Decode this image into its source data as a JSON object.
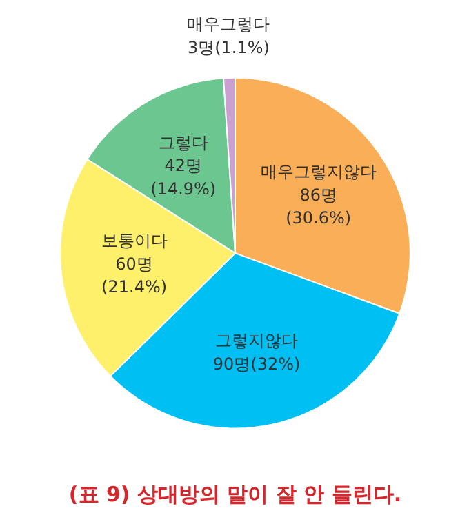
{
  "chart_data": {
    "type": "pie",
    "title": "(표 9) 상대방의 말이 잘 안 들린다.",
    "categories": [
      "매우그렇지않다",
      "그렇지않다",
      "보통이다",
      "그렇다",
      "매우그렇다"
    ],
    "values": [
      86,
      90,
      60,
      42,
      3
    ],
    "colors": [
      "#f9ae57",
      "#00bff3",
      "#fff06b",
      "#6cc690",
      "#c9a0d0"
    ],
    "value_labels": [
      "86명\n(30.6%)",
      "90명(32%)",
      "60명\n(21.4%)",
      "42명\n(14.9%)",
      "3명(1.1%)"
    ]
  }
}
